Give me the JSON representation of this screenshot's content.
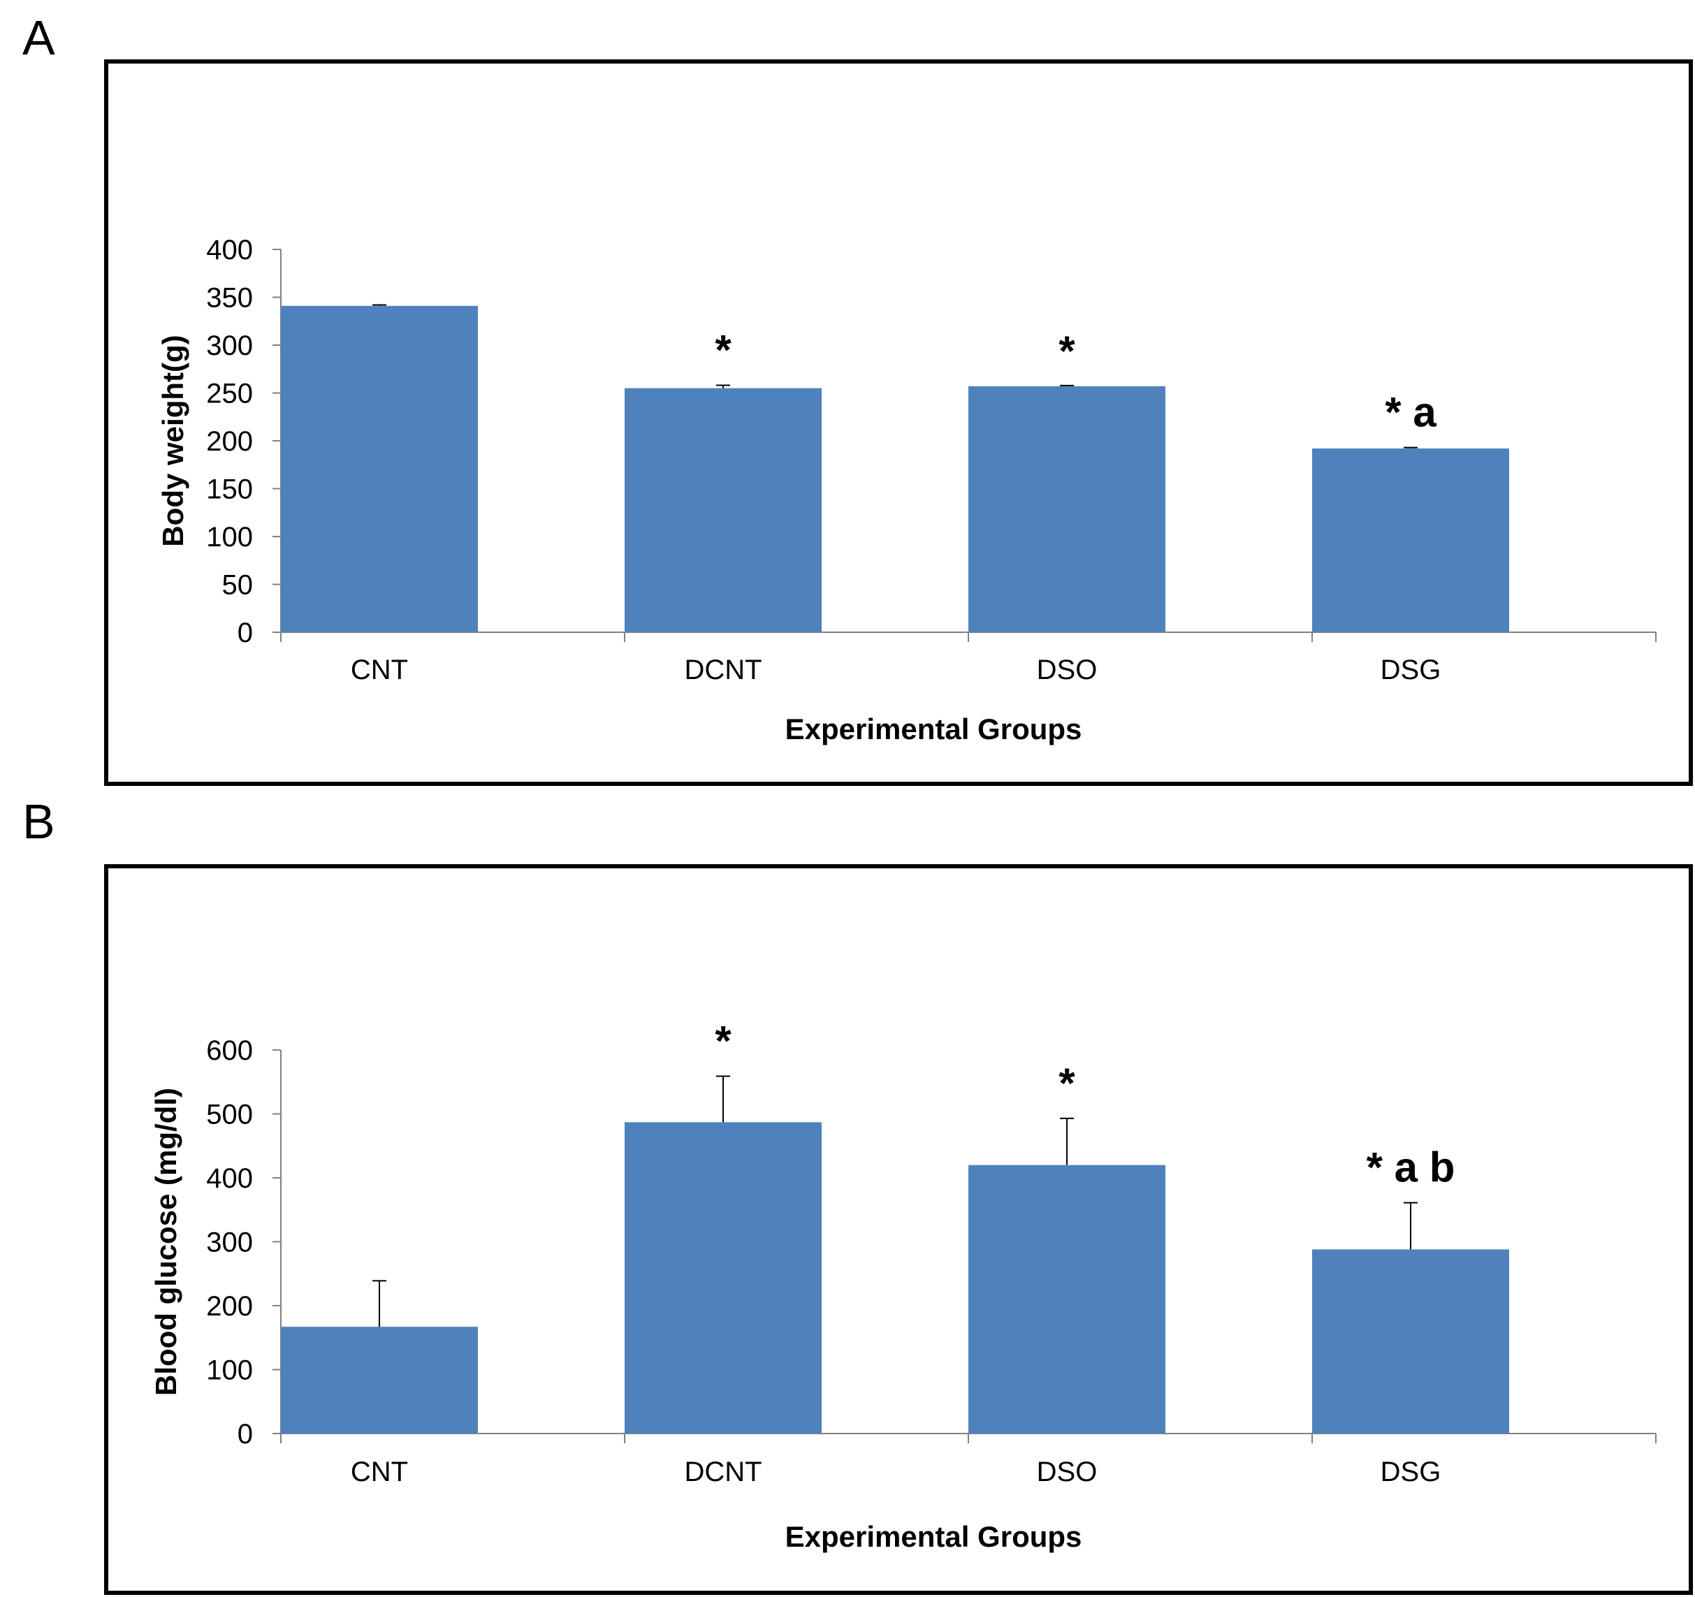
{
  "chart_data": [
    {
      "panel": "A",
      "type": "bar",
      "categories": [
        "CNT",
        "DCNT",
        "DSO",
        "DSG"
      ],
      "values": [
        341,
        255,
        257,
        192
      ],
      "errors": [
        1,
        3,
        0,
        1
      ],
      "annotations": [
        "",
        "*",
        "*",
        "* a"
      ],
      "xlabel": "Experimental Groups",
      "ylabel": "Body weight(g)",
      "ylim": [
        0,
        400
      ],
      "yticks": [
        0,
        50,
        100,
        150,
        200,
        250,
        300,
        350,
        400
      ],
      "bar_color": "#4f81bd"
    },
    {
      "panel": "B",
      "type": "bar",
      "categories": [
        "CNT",
        "DCNT",
        "DSO",
        "DSG"
      ],
      "values": [
        167,
        487,
        420,
        288
      ],
      "errors": [
        72,
        72,
        73,
        73
      ],
      "annotations": [
        "",
        "*",
        "*",
        "* a b"
      ],
      "xlabel": "Experimental Groups",
      "ylabel": "Blood glucose  (mg/dl)",
      "ylim": [
        0,
        600
      ],
      "yticks": [
        0,
        100,
        200,
        300,
        400,
        500,
        600
      ],
      "bar_color": "#4f81bd"
    }
  ]
}
